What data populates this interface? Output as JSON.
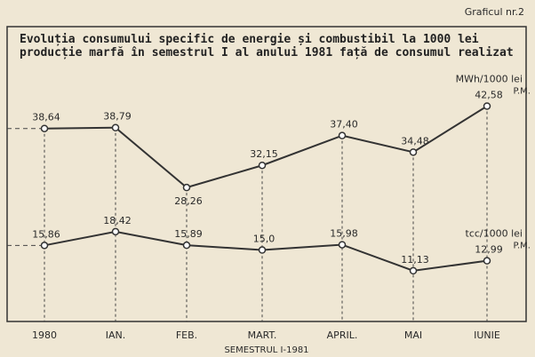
{
  "chart_data": {
    "type": "line",
    "figure_label": "Graficul nr.2",
    "title": "Evoluția consumului specific de energie și combustibil la 1000 lei producție marfă în semestrul I al anului 1981 față de consumul realizat",
    "x_label": "SEMESTRUL I-1981",
    "categories": [
      "1980",
      "IAN.",
      "FEB.",
      "MART.",
      "APRIL.",
      "MAI",
      "IUNIE"
    ],
    "series": [
      {
        "name": "MWh/1000 lei",
        "color": "#333333",
        "annotation": "P.M.",
        "values": [
          38.64,
          38.79,
          28.26,
          32.15,
          37.4,
          34.48,
          42.58
        ],
        "value_labels": [
          "38,64",
          "38,79",
          "28,26",
          "32,15",
          "37,40",
          "34,48",
          "42,58"
        ]
      },
      {
        "name": "tcc/1000 lei",
        "color": "#333333",
        "annotation": "P.M.",
        "axis": "y2",
        "values": [
          15.86,
          18.42,
          15.89,
          15.0,
          15.98,
          11.13,
          12.99
        ],
        "value_labels": [
          "15,86",
          "18,42",
          "15,89",
          "15,0",
          "15,98",
          "11,13",
          "12,99"
        ]
      }
    ],
    "ylim": [
      5,
      55
    ],
    "y2lim": [
      2,
      55
    ]
  }
}
